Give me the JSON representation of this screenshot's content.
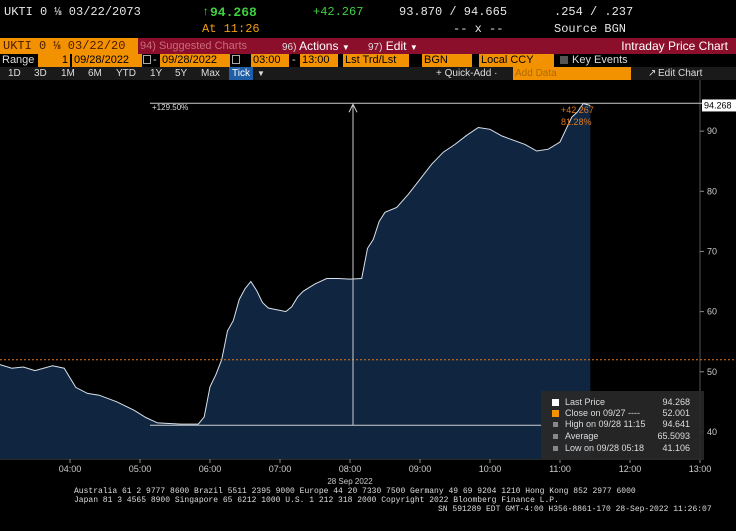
{
  "quote": {
    "ticker": "UKTI 0 ⅛ 03/22/2073",
    "arrow": "↑",
    "last": "94.268",
    "at": "At 11:26",
    "change": "+42.267",
    "bid_ask": "93.870 / 94.665",
    "bid_ask_size": "-- x --",
    "yield": ".254 / .237",
    "source": "Source BGN"
  },
  "command_bar": {
    "ticker_field": "UKTI 0 ⅛ 03/22/20",
    "suggested": "94) Suggested Charts",
    "actions_num": "96)",
    "actions": "Actions",
    "edit_num": "97)",
    "edit": "Edit",
    "title": "Intraday Price Chart"
  },
  "range_bar": {
    "range_label": "Range",
    "range_value": "1",
    "start_date": "09/28/2022",
    "end_date": "09/28/2022",
    "start_time": "03:00",
    "end_time": "13:00",
    "trade_type": "Lst Trd/Lst",
    "source": "BGN",
    "currency": "Local CCY",
    "key_events": "Key Events"
  },
  "period_bar": {
    "periods": [
      "1D",
      "3D",
      "1M",
      "6M",
      "YTD",
      "1Y",
      "5Y",
      "Max",
      "Tick"
    ],
    "selected": "Tick",
    "quick_add": "+ Quick-Add ·",
    "add_data_placeholder": "Add Data",
    "edit_chart": "Edit Chart"
  },
  "chart_data": {
    "type": "area",
    "x_ticks": [
      "04:00",
      "05:00",
      "06:00",
      "07:00",
      "08:00",
      "09:00",
      "10:00",
      "11:00",
      "12:00",
      "13:00"
    ],
    "x_date_label": "28 Sep 2022",
    "y_ticks": [
      40,
      50,
      60,
      70,
      80,
      90
    ],
    "ylim": [
      35.5,
      98.5
    ],
    "xlim": [
      "03:00",
      "13:00"
    ],
    "series": [
      {
        "x": [
          "03:00",
          "03:10",
          "03:20",
          "03:30",
          "03:45",
          "03:55",
          "04:05",
          "04:15",
          "04:25",
          "04:40",
          "04:55",
          "05:05",
          "05:15",
          "05:25",
          "05:35",
          "05:50",
          "05:55",
          "06:00",
          "06:05",
          "06:10",
          "06:15",
          "06:20",
          "06:25",
          "06:30",
          "06:35",
          "06:40",
          "06:45",
          "06:50",
          "06:55",
          "07:00",
          "07:05",
          "07:10",
          "07:15",
          "07:20",
          "07:30",
          "07:40",
          "07:50",
          "08:00",
          "08:10",
          "08:15",
          "08:20",
          "08:25",
          "08:30",
          "08:40",
          "08:50",
          "09:00",
          "09:10",
          "09:20",
          "09:30",
          "09:40",
          "09:50",
          "10:00",
          "10:10",
          "10:20",
          "10:30",
          "10:40",
          "10:50",
          "11:00",
          "11:10",
          "11:15",
          "11:20",
          "11:26"
        ],
        "values": [
          51.2,
          50.6,
          50.8,
          50.2,
          51.0,
          50.6,
          47.4,
          46.4,
          46.1,
          45.0,
          43.6,
          42.4,
          41.5,
          41.4,
          41.3,
          41.3,
          42.5,
          47.5,
          49.5,
          52.0,
          56.8,
          58.5,
          62.0,
          63.8,
          65.0,
          63.5,
          61.5,
          60.6,
          60.4,
          60.2,
          60.0,
          60.8,
          62.4,
          63.4,
          64.6,
          65.5,
          65.5,
          65.4,
          65.5,
          70.5,
          72.0,
          75.0,
          76.5,
          77.3,
          79.5,
          82.0,
          84.5,
          86.5,
          87.8,
          89.3,
          90.6,
          90.3,
          89.2,
          88.5,
          87.8,
          86.7,
          87.0,
          88.2,
          92.3,
          93.2,
          94.6,
          94.268
        ]
      }
    ],
    "colors": {
      "area": "#0f2540",
      "line": "#d9e2ec",
      "last_price": "#ffffff",
      "close_line": "#e07a1f"
    },
    "last_price_label": "94.268",
    "change_annotation": "+42.267",
    "change_pct_annotation": "81.28%",
    "range_annotation": "+129.50%",
    "close_prev": 52.001,
    "high": 94.641,
    "low": 41.106
  },
  "legend": {
    "items": [
      {
        "label": "Last Price",
        "value": "94.268",
        "color": "#ffffff"
      },
      {
        "label": "Close on 09/27 ----",
        "value": "52.001",
        "color": "#f39200"
      },
      {
        "label": "High on 09/28 11:15",
        "value": "94.641",
        "color": "#999999"
      },
      {
        "label": "Average",
        "value": "65.5093",
        "color": "#999999"
      },
      {
        "label": "Low on 09/28 05:18",
        "value": "41.106",
        "color": "#999999"
      }
    ]
  },
  "footer": {
    "line1": "Australia 61 2 9777 8600 Brazil 5511 2395 9000 Europe 44 20 7330 7500 Germany 49 69 9204 1210 Hong Kong 852 2977 6000",
    "line2": "Japan 81 3 4565 8900      Singapore 65 6212 1000      U.S. 1 212 318 2000        Copyright 2022 Bloomberg Finance L.P.",
    "line3": "SN 591289 EDT  GMT-4:00 H356-8861-170 28-Sep-2022 11:26:07"
  }
}
